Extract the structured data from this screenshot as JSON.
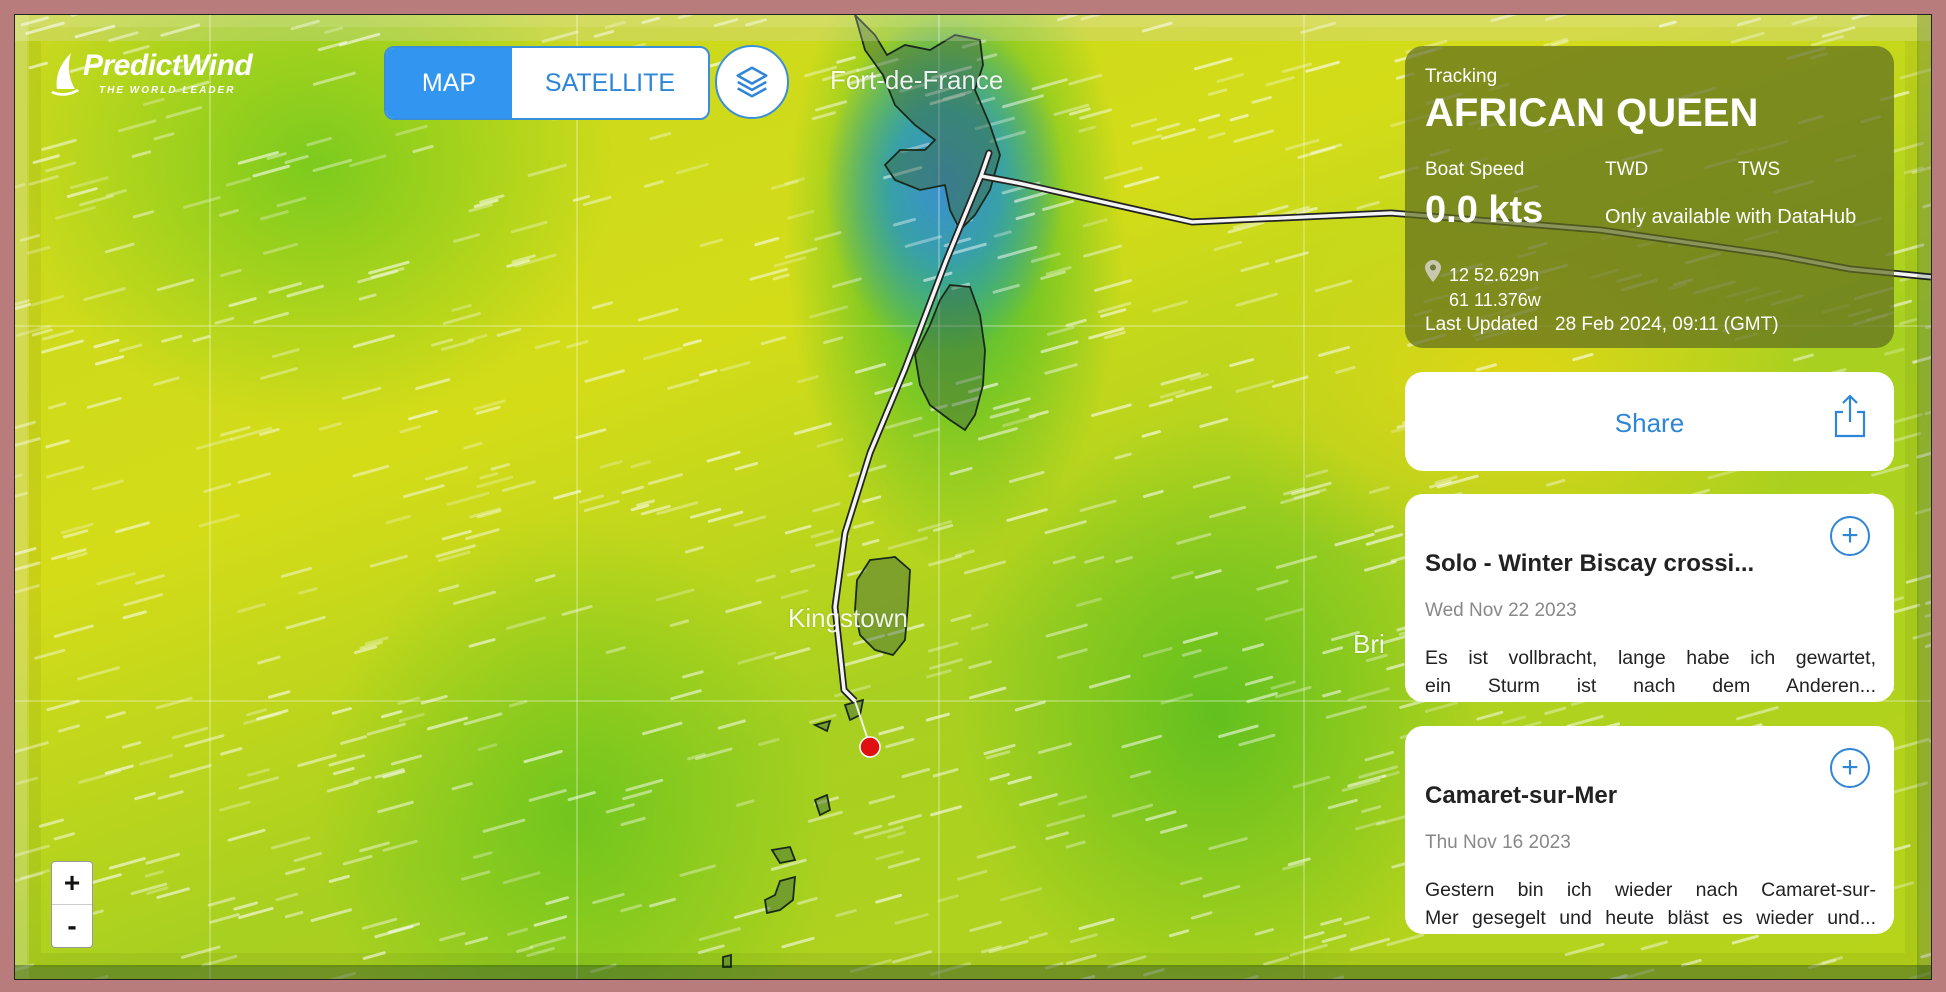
{
  "logo": {
    "name": "PredictWind",
    "tagline": "THE WORLD LEADER"
  },
  "map_toggle": {
    "map_label": "MAP",
    "satellite_label": "SATELLITE",
    "selected": "MAP"
  },
  "layers_icon": "layers-icon",
  "places": {
    "fort_de_france": "Fort-de-France",
    "kingstown": "Kingstown",
    "bri": "Bri"
  },
  "zoom": {
    "in": "+",
    "out": "-"
  },
  "tracking": {
    "label": "Tracking",
    "boat_name": "AFRICAN QUEEN",
    "boat_speed_label": "Boat Speed",
    "twd_label": "TWD",
    "tws_label": "TWS",
    "boat_speed_value": "0.0 kts",
    "wind_note": "Only available with DataHub",
    "lat": "12 52.629n",
    "lon": "61 11.376w",
    "last_updated_label": "Last Updated",
    "last_updated_value": "28 Feb 2024, 09:11 (GMT)"
  },
  "share": {
    "label": "Share",
    "icon": "share-icon"
  },
  "posts": [
    {
      "title": "Solo - Winter Biscay crossi...",
      "date": "Wed Nov 22 2023",
      "line1": "Es ist vollbracht, lange habe ich gewartet,",
      "line2": "ein Sturm ist nach dem Anderen..."
    },
    {
      "title": "Camaret-sur-Mer",
      "date": "Thu Nov 16 2023",
      "line1": "Gestern bin ich wieder nach Camaret-sur-",
      "line2": "Mer gesegelt und heute bläst es wieder und..."
    }
  ],
  "colors": {
    "accent": "#3296f0",
    "boat_marker": "#e01010",
    "frame": "#b97c7c"
  }
}
